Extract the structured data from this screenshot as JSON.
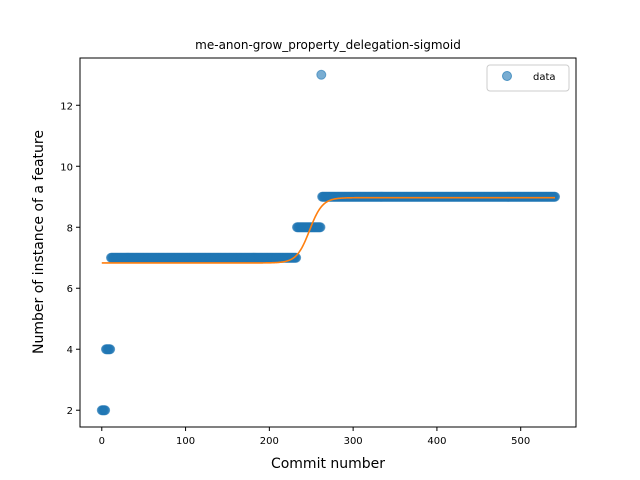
{
  "chart_data": {
    "type": "scatter",
    "title": "me-anon-grow_property_delegation-sigmoid",
    "xlabel": "Commit number",
    "ylabel": "Number of instance of a feature",
    "xlim": [
      -26,
      566
    ],
    "ylim": [
      1.45,
      13.55
    ],
    "xticks": [
      0,
      100,
      200,
      300,
      400,
      500
    ],
    "yticks": [
      2,
      4,
      6,
      8,
      10,
      12
    ],
    "grid": false,
    "legend_position": "top-right",
    "series": [
      {
        "name": "data",
        "kind": "scatter",
        "color": "#1f77b4",
        "segments": [
          {
            "x_from": 0,
            "x_to": 4,
            "y": 2
          },
          {
            "x_from": 5,
            "x_to": 10,
            "y": 4
          },
          {
            "x_from": 11,
            "x_to": 232,
            "y": 7
          },
          {
            "x_from": 233,
            "x_to": 261,
            "y": 8
          },
          {
            "x_from": 263,
            "x_to": 541,
            "y": 9
          }
        ],
        "extra_points": [
          {
            "x": 262,
            "y": 13
          }
        ]
      },
      {
        "kind": "line",
        "color": "#ff7f0e",
        "model": "sigmoid",
        "params": {
          "low": 6.83,
          "high": 8.97,
          "midpoint": 248,
          "steepness": 0.13
        },
        "x_range": [
          0,
          541
        ]
      }
    ]
  },
  "legend": {
    "label": "data"
  }
}
